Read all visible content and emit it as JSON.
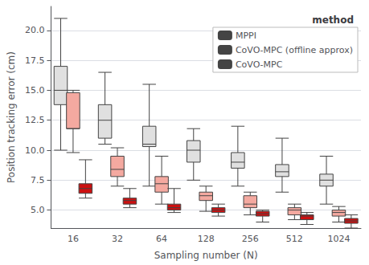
{
  "chart_data": {
    "type": "boxplot",
    "title": "",
    "xlabel": "Sampling number (N)",
    "ylabel": "Position tracking error (cm)",
    "categories": [
      "16",
      "32",
      "64",
      "128",
      "256",
      "512",
      "1024"
    ],
    "legend_title": "method",
    "legend": "upper right",
    "grid": true,
    "ylim": [
      3.5,
      22.0
    ],
    "yticks": [
      {
        "value": 5.0,
        "label": "5.0"
      },
      7.5,
      {
        "value": 10.0,
        "label": "10.0"
      },
      12.5,
      {
        "value": 15.0,
        "label": "15.0"
      },
      17.5,
      {
        "value": 20.0,
        "label": "20.0"
      }
    ],
    "series": [
      {
        "name": "MPPI",
        "color": "#e0e0e0",
        "values": [
          [
            10.0,
            13.8,
            15.0,
            17.0,
            21.0
          ],
          [
            10.5,
            11.0,
            12.5,
            13.8,
            16.5
          ],
          [
            7.0,
            10.3,
            10.5,
            12.0,
            15.5
          ],
          [
            7.5,
            9.0,
            10.0,
            10.8,
            11.8
          ],
          [
            7.0,
            8.5,
            9.0,
            9.8,
            12.0
          ],
          [
            6.5,
            7.8,
            8.2,
            8.8,
            11.0
          ],
          [
            5.5,
            7.0,
            7.5,
            8.0,
            9.5
          ]
        ]
      },
      {
        "name": "CoVO-MPC (offline approx)",
        "color": "#f4a9a0",
        "values": [
          [
            9.8,
            11.8,
            11.8,
            14.8,
            15.0
          ],
          [
            7.0,
            7.8,
            8.4,
            9.5,
            10.2
          ],
          [
            5.5,
            6.5,
            7.2,
            7.8,
            9.5
          ],
          [
            4.9,
            5.8,
            6.2,
            6.5,
            7.0
          ],
          [
            4.6,
            5.2,
            5.5,
            6.2,
            6.5
          ],
          [
            4.2,
            4.6,
            5.0,
            5.2,
            5.5
          ],
          [
            4.0,
            4.5,
            4.8,
            5.0,
            5.3
          ]
        ]
      },
      {
        "name": "CoVO-MPC",
        "color": "#cc1010",
        "values": [
          [
            6.0,
            6.4,
            6.8,
            7.2,
            9.2
          ],
          [
            5.2,
            5.5,
            5.8,
            6.0,
            6.8
          ],
          [
            4.8,
            5.0,
            5.2,
            5.5,
            6.8
          ],
          [
            4.5,
            4.8,
            5.0,
            5.2,
            5.5
          ],
          [
            4.0,
            4.5,
            4.7,
            4.9,
            5.0
          ],
          [
            3.8,
            4.2,
            4.5,
            4.6,
            4.8
          ],
          [
            3.5,
            3.9,
            4.1,
            4.3,
            4.6
          ]
        ]
      }
    ]
  }
}
